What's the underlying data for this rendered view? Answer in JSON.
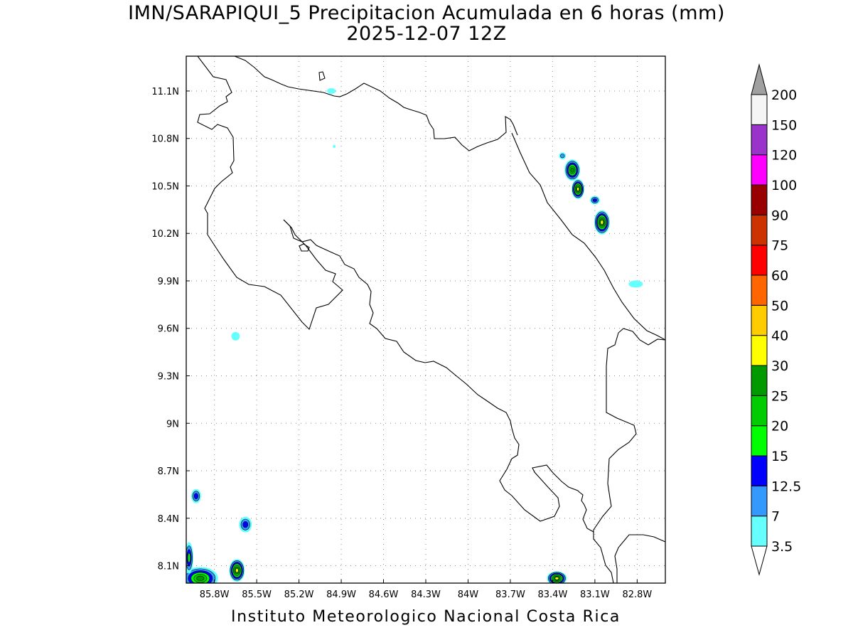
{
  "title": {
    "line1": "IMN/SARAPIQUI_5 Precipitacion Acumulada en 6 horas (mm)",
    "line2": "2025-12-07 12Z"
  },
  "footer": "Instituto Meteorologico Nacional Costa Rica",
  "map": {
    "lon_range": [
      -86.0,
      -82.6
    ],
    "lat_range": [
      7.99,
      11.32
    ],
    "lon_ticks": [
      {
        "value": -85.8,
        "label": "85.8W"
      },
      {
        "value": -85.5,
        "label": "85.5W"
      },
      {
        "value": -85.2,
        "label": "85.2W"
      },
      {
        "value": -84.9,
        "label": "84.9W"
      },
      {
        "value": -84.6,
        "label": "84.6W"
      },
      {
        "value": -84.3,
        "label": "84.3W"
      },
      {
        "value": -84.0,
        "label": "84W"
      },
      {
        "value": -83.7,
        "label": "83.7W"
      },
      {
        "value": -83.4,
        "label": "83.4W"
      },
      {
        "value": -83.1,
        "label": "83.1W"
      },
      {
        "value": -82.8,
        "label": "82.8W"
      }
    ],
    "lat_ticks": [
      {
        "value": 11.1,
        "label": "11.1N"
      },
      {
        "value": 10.8,
        "label": "10.8N"
      },
      {
        "value": 10.5,
        "label": "10.5N"
      },
      {
        "value": 10.2,
        "label": "10.2N"
      },
      {
        "value": 9.9,
        "label": "9.9N"
      },
      {
        "value": 9.6,
        "label": "9.6N"
      },
      {
        "value": 9.3,
        "label": "9.3N"
      },
      {
        "value": 9.0,
        "label": "9N"
      },
      {
        "value": 8.7,
        "label": "8.7N"
      },
      {
        "value": 8.4,
        "label": "8.4N"
      },
      {
        "value": 8.1,
        "label": "8.1N"
      }
    ],
    "grid": true
  },
  "colorbar": {
    "levels": [
      {
        "label": "3.5",
        "color": "#66ffff"
      },
      {
        "label": "7",
        "color": "#3399ff"
      },
      {
        "label": "12.5",
        "color": "#0000ff"
      },
      {
        "label": "15",
        "color": "#00ff00"
      },
      {
        "label": "20",
        "color": "#00cc00"
      },
      {
        "label": "25",
        "color": "#009900"
      },
      {
        "label": "30",
        "color": "#ffff00"
      },
      {
        "label": "40",
        "color": "#ffcc00"
      },
      {
        "label": "50",
        "color": "#ff6600"
      },
      {
        "label": "60",
        "color": "#ff0000"
      },
      {
        "label": "75",
        "color": "#cc3300"
      },
      {
        "label": "90",
        "color": "#990000"
      },
      {
        "label": "100",
        "color": "#ff00ff"
      },
      {
        "label": "120",
        "color": "#9933cc"
      },
      {
        "label": "150",
        "color": "#f5f5f5"
      },
      {
        "label": "200",
        "color": "#a0a0a0"
      }
    ]
  },
  "precip_cells": [
    {
      "lon": -83.26,
      "lat": 10.6,
      "rx": 11,
      "ry": 15,
      "level": 5
    },
    {
      "lon": -83.22,
      "lat": 10.48,
      "rx": 9,
      "ry": 14,
      "level": 6
    },
    {
      "lon": -83.05,
      "lat": 10.27,
      "rx": 11,
      "ry": 17,
      "level": 6
    },
    {
      "lon": -83.1,
      "lat": 10.41,
      "rx": 7,
      "ry": 6,
      "level": 2
    },
    {
      "lon": -83.33,
      "lat": 10.69,
      "rx": 5,
      "ry": 5,
      "level": 1
    },
    {
      "lon": -82.81,
      "lat": 9.88,
      "rx": 10,
      "ry": 5,
      "level": 0
    },
    {
      "lon": -84.97,
      "lat": 11.1,
      "rx": 6,
      "ry": 4,
      "level": 0
    },
    {
      "lon": -84.95,
      "lat": 10.75,
      "rx": 2,
      "ry": 2,
      "level": 0
    },
    {
      "lon": -85.65,
      "lat": 9.55,
      "rx": 6,
      "ry": 6,
      "level": 0
    },
    {
      "lon": -85.93,
      "lat": 8.54,
      "rx": 7,
      "ry": 10,
      "level": 2
    },
    {
      "lon": -85.58,
      "lat": 8.36,
      "rx": 9,
      "ry": 11,
      "level": 2
    },
    {
      "lon": -85.64,
      "lat": 8.07,
      "rx": 11,
      "ry": 16,
      "level": 6
    },
    {
      "lon": -85.9,
      "lat": 8.02,
      "rx": 25,
      "ry": 16,
      "level": 5
    },
    {
      "lon": -85.98,
      "lat": 8.15,
      "rx": 6,
      "ry": 22,
      "level": 3
    },
    {
      "lon": -83.37,
      "lat": 8.02,
      "rx": 14,
      "ry": 10,
      "level": 6
    }
  ]
}
